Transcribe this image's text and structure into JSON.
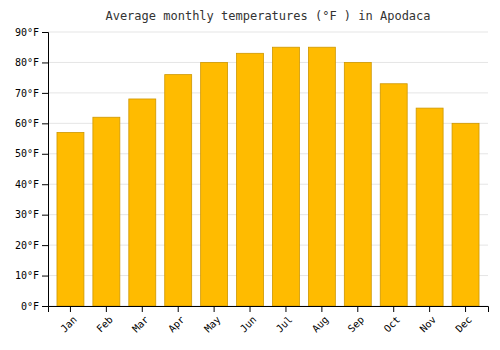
{
  "chart_data": {
    "type": "bar",
    "title": "Average monthly temperatures (°F ) in Apodaca",
    "categories": [
      "Jan",
      "Feb",
      "Mar",
      "Apr",
      "May",
      "Jun",
      "Jul",
      "Aug",
      "Sep",
      "Oct",
      "Nov",
      "Dec"
    ],
    "values": [
      57,
      62,
      68,
      76,
      80,
      83,
      85,
      85,
      80,
      73,
      65,
      60
    ],
    "color": "#FFBB00",
    "ylim": [
      0,
      90
    ],
    "yticks": [
      {
        "value": 0,
        "label": "0°F"
      },
      {
        "value": 10,
        "label": "10°F"
      },
      {
        "value": 20,
        "label": "20°F"
      },
      {
        "value": 30,
        "label": "30°F"
      },
      {
        "value": 40,
        "label": "40°F"
      },
      {
        "value": 50,
        "label": "50°F"
      },
      {
        "value": 60,
        "label": "60°F"
      },
      {
        "value": 70,
        "label": "70°F"
      },
      {
        "value": 80,
        "label": "80°F"
      },
      {
        "value": 90,
        "label": "90°F"
      }
    ],
    "grid": true
  }
}
